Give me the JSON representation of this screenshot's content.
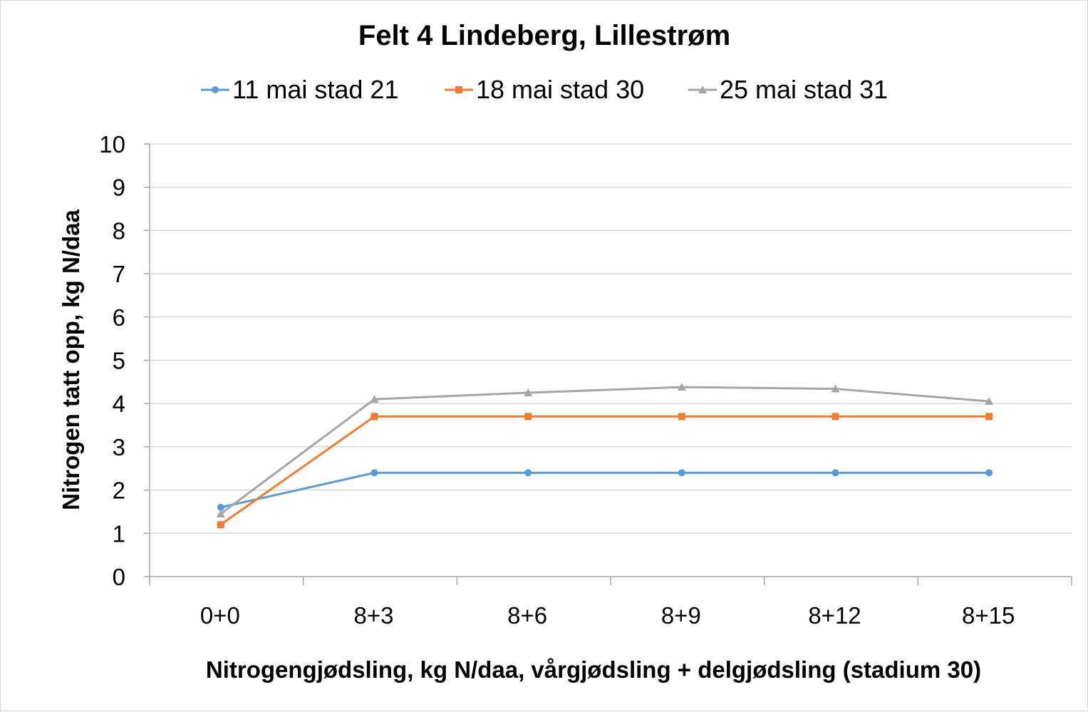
{
  "chart_data": {
    "type": "line",
    "title": "Felt 4 Lindeberg, Lillestrøm",
    "xlabel": "Nitrogengjødsling, kg N/daa, vårgjødsling + delgjødsling (stadium 30)",
    "ylabel": "Nitrogen tatt opp, kg N/daa",
    "categories": [
      "0+0",
      "8+3",
      "8+6",
      "8+9",
      "8+12",
      "8+15"
    ],
    "ylim": [
      0,
      10
    ],
    "yticks": [
      0,
      1,
      2,
      3,
      4,
      5,
      6,
      7,
      8,
      9,
      10
    ],
    "grid": true,
    "legend_position": "top",
    "series": [
      {
        "name": "11 mai stad 21",
        "color": "#5b9bd5",
        "marker": "circle",
        "values": [
          1.6,
          2.4,
          2.4,
          2.4,
          2.4,
          2.4
        ]
      },
      {
        "name": "18 mai stad 30",
        "color": "#ed7d31",
        "marker": "square",
        "values": [
          1.2,
          3.7,
          3.7,
          3.7,
          3.7,
          3.7
        ]
      },
      {
        "name": "25 mai stad 31",
        "color": "#a5a5a5",
        "marker": "triangle",
        "values": [
          1.45,
          4.1,
          4.25,
          4.38,
          4.34,
          4.05
        ]
      }
    ]
  }
}
